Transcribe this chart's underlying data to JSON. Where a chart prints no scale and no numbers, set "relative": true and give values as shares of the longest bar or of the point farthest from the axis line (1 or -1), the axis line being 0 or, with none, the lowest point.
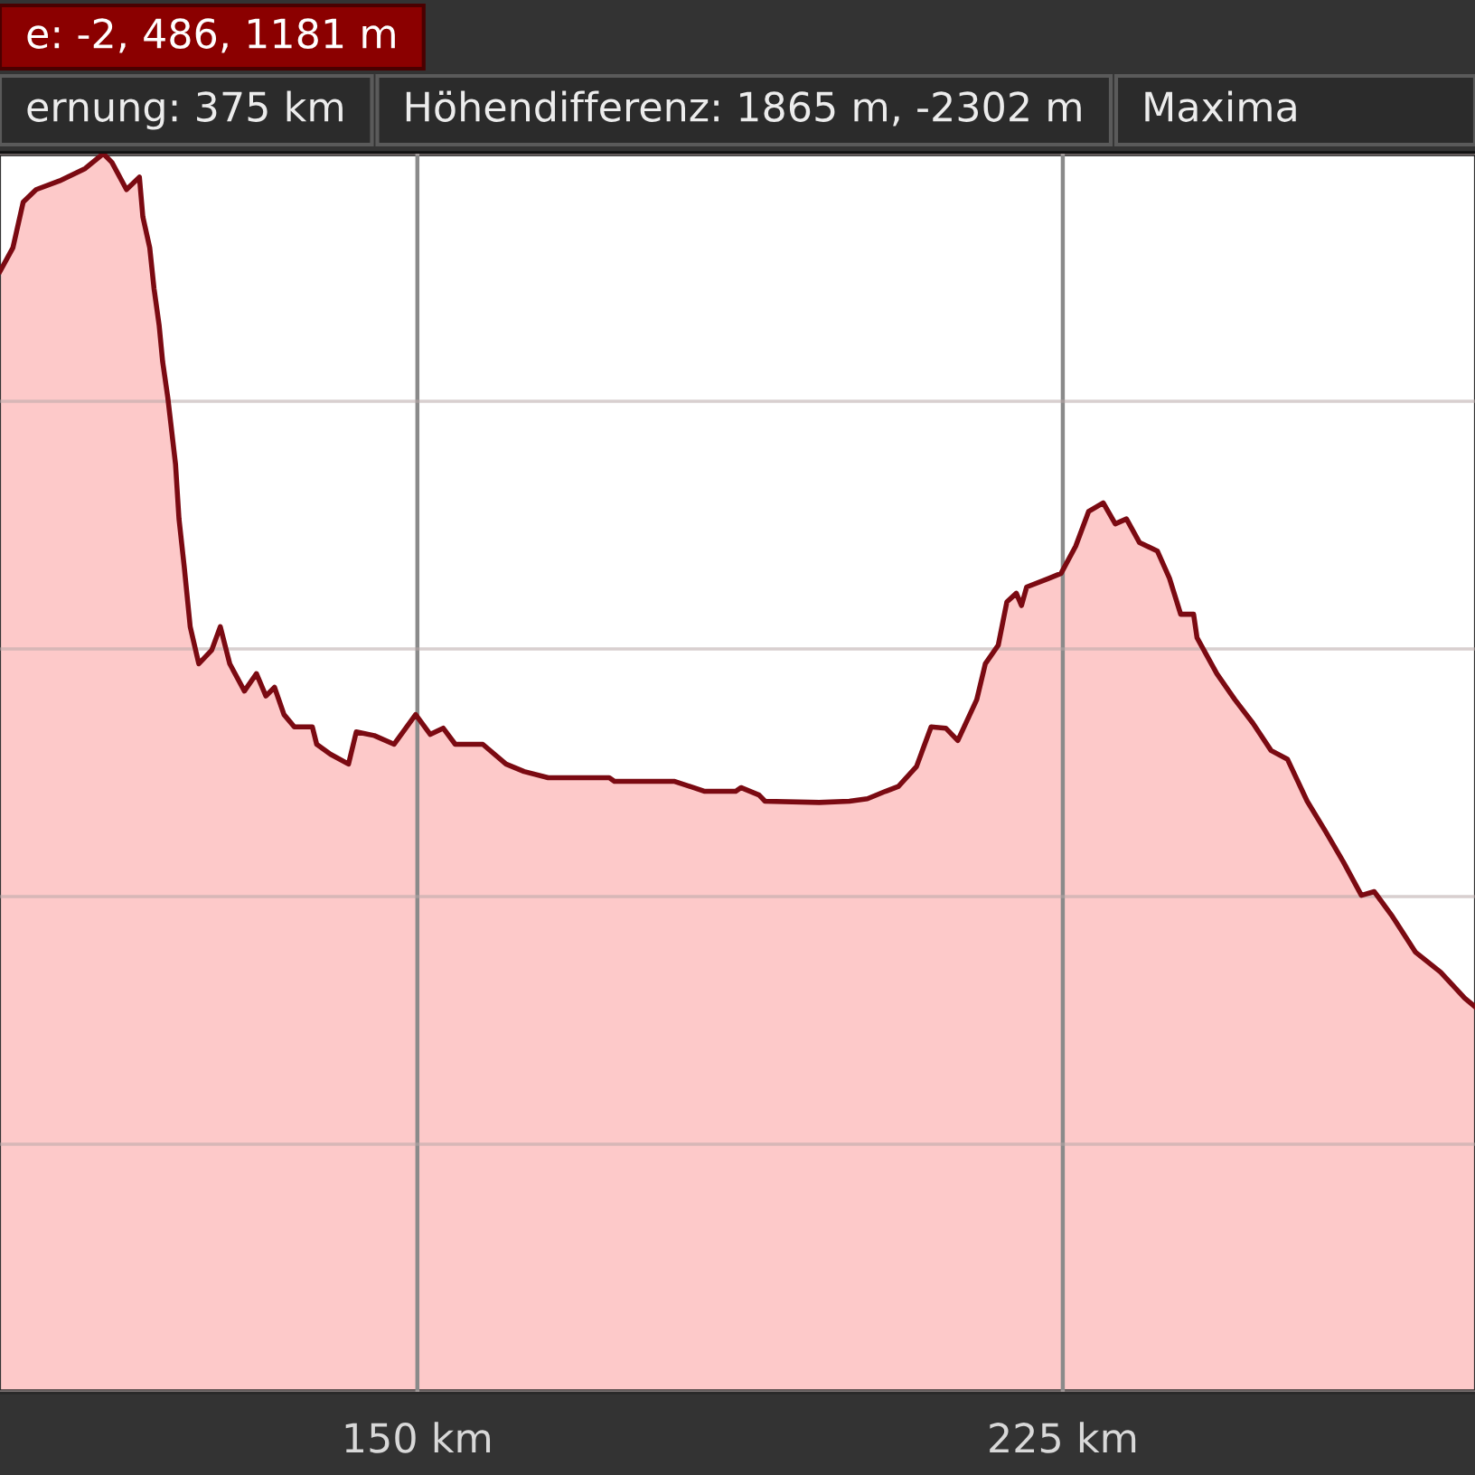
{
  "chart_data": {
    "type": "area",
    "relative": true,
    "annotations": [
      "e: -2, 486, 1181 m",
      "ernung: 375 km",
      "Höhendifferenz: 1865 m, -2302 m",
      "Maxima"
    ],
    "x": [
      101.5,
      103.0,
      104.2,
      105.7,
      108.4,
      111.4,
      113.5,
      114.5,
      116.2,
      117.7,
      118.1,
      118.9,
      119.4,
      120.0,
      120.4,
      121.0,
      121.9,
      122.3,
      122.9,
      123.6,
      124.6,
      126.1,
      127.1,
      128.2,
      129.9,
      131.3,
      132.4,
      133.4,
      134.5,
      135.7,
      137.8,
      138.3,
      139.9,
      142.0,
      142.9,
      145.0,
      147.3,
      149.8,
      151.5,
      153.0,
      154.4,
      157.6,
      160.3,
      162.4,
      165.2,
      172.3,
      172.9,
      179.9,
      183.4,
      187.0,
      187.6,
      189.7,
      190.4,
      196.7,
      200.2,
      202.3,
      204.4,
      205.9,
      208.0,
      209.7,
      211.4,
      212.8,
      215.0,
      216.0,
      217.5,
      218.5,
      219.6,
      220.2,
      220.8,
      223.4,
      224.8,
      226.5,
      228.0,
      229.7,
      231.1,
      232.4,
      233.9,
      236.0,
      237.4,
      238.7,
      240.2,
      240.6,
      242.9,
      245.0,
      247.1,
      249.2,
      251.1,
      253.4,
      255.5,
      257.6,
      259.7,
      261.2,
      263.3,
      266.0,
      268.9,
      271.7,
      272.9
    ],
    "series": [
      {
        "color": "#fdc9c9",
        "values": [
          0.905,
          0.924,
          0.961,
          0.971,
          0.978,
          0.988,
          1.0,
          0.993,
          0.971,
          0.981,
          0.949,
          0.924,
          0.891,
          0.861,
          0.832,
          0.803,
          0.749,
          0.705,
          0.667,
          0.618,
          0.588,
          0.599,
          0.618,
          0.588,
          0.566,
          0.58,
          0.562,
          0.569,
          0.547,
          0.537,
          0.537,
          0.523,
          0.515,
          0.507,
          0.533,
          0.53,
          0.523,
          0.547,
          0.531,
          0.536,
          0.523,
          0.523,
          0.507,
          0.501,
          0.496,
          0.496,
          0.493,
          0.493,
          0.485,
          0.485,
          0.488,
          0.482,
          0.477,
          0.476,
          0.477,
          0.479,
          0.485,
          0.489,
          0.505,
          0.537,
          0.536,
          0.526,
          0.559,
          0.588,
          0.603,
          0.638,
          0.645,
          0.635,
          0.65,
          0.657,
          0.661,
          0.683,
          0.711,
          0.718,
          0.701,
          0.705,
          0.686,
          0.679,
          0.657,
          0.628,
          0.628,
          0.609,
          0.58,
          0.559,
          0.54,
          0.518,
          0.511,
          0.477,
          0.453,
          0.428,
          0.401,
          0.404,
          0.384,
          0.355,
          0.339,
          0.318,
          0.311
        ]
      }
    ],
    "xlim": [
      101.5,
      272.9
    ],
    "xticks": [
      {
        "value": 150,
        "label": "150 km"
      },
      {
        "value": 225,
        "label": "225 km"
      }
    ],
    "grid": true
  }
}
